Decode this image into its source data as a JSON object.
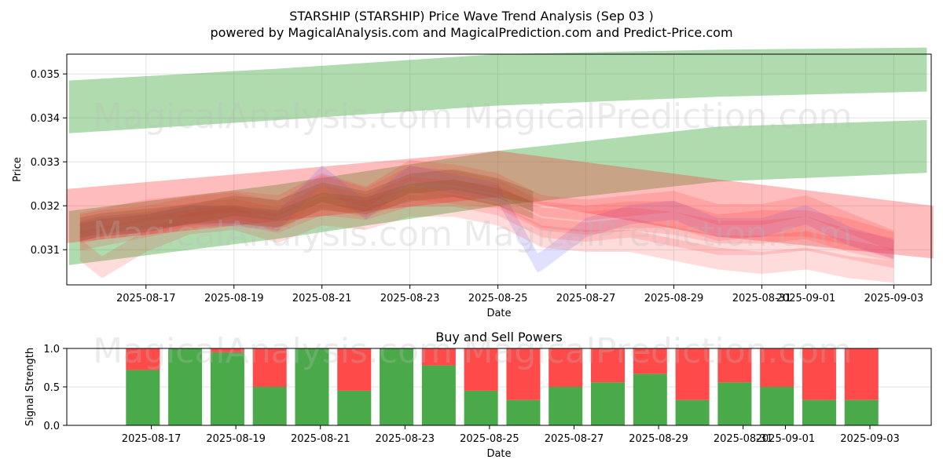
{
  "header": {
    "title_line1": "STARSHIP (STARSHIP) Price Wave Trend Analysis (Sep 03 )",
    "title_line2": "powered by MagicalAnalysis.com and MagicalPrediction.com and Predict-Price.com"
  },
  "watermarks": {
    "left": "MagicalAnalysis.com",
    "right": "MagicalPrediction.com"
  },
  "colors": {
    "green_band": "#2ca02c",
    "red_band": "#ff3030",
    "blue_band": "#6a6aff",
    "buy": "#4aaa4a",
    "sell": "#ff4a4a",
    "grid": "#e3e3e3"
  },
  "chart_data": [
    {
      "type": "area",
      "name": "price-wave-chart",
      "title": "",
      "xlabel": "Date",
      "ylabel": "Price",
      "x_ticks": [
        "2025-08-17",
        "2025-08-19",
        "2025-08-21",
        "2025-08-23",
        "2025-08-25",
        "2025-08-27",
        "2025-08-29",
        "2025-08-31",
        "2025-09-01",
        "2025-09-03"
      ],
      "x_tick_days": [
        2,
        4,
        6,
        8,
        10,
        12,
        14,
        16,
        17,
        19
      ],
      "x_tick_days_note": "days since 2025-08-15",
      "xlim_days": [
        0.2,
        19.85
      ],
      "y_ticks": [
        0.031,
        0.032,
        0.033,
        0.034,
        0.035
      ],
      "ylim": [
        0.0302,
        0.03545
      ],
      "trend_bands": [
        {
          "name": "upper-green-trend",
          "x": [
            0.25,
            5.0,
            10.0,
            15.0,
            19.75
          ],
          "lower": [
            0.03365,
            0.03395,
            0.03428,
            0.03448,
            0.0346
          ],
          "upper": [
            0.03485,
            0.03512,
            0.03545,
            0.03555,
            0.0356
          ]
        },
        {
          "name": "lower-green-trend",
          "x": [
            0.25,
            5.0,
            10.0,
            15.0,
            19.75
          ],
          "lower": [
            0.03065,
            0.03125,
            0.032,
            0.03255,
            0.03275
          ],
          "upper": [
            0.03188,
            0.03248,
            0.03325,
            0.0338,
            0.03395
          ]
        },
        {
          "name": "red-trend",
          "x": [
            0.2,
            5.0,
            10.0,
            15.0,
            19.9
          ],
          "lower": [
            0.03115,
            0.03165,
            0.0322,
            0.0313,
            0.0308
          ],
          "upper": [
            0.03238,
            0.0328,
            0.03325,
            0.0326,
            0.032
          ]
        }
      ],
      "wave_series": [
        {
          "name": "blue-wave",
          "color": "blue",
          "x": [
            0.5,
            1,
            2,
            3,
            4,
            5,
            6,
            7,
            8,
            9,
            10,
            10.9,
            11,
            12,
            13,
            14,
            15,
            16,
            17,
            18,
            19
          ],
          "mid": [
            0.0314,
            0.03155,
            0.0316,
            0.0318,
            0.03175,
            0.03165,
            0.0327,
            0.0319,
            0.0327,
            0.0325,
            0.0323,
            0.0307,
            0.03075,
            0.0315,
            0.0318,
            0.0319,
            0.0315,
            0.0315,
            0.0318,
            0.0313,
            0.031
          ],
          "half_width": 0.00022
        },
        {
          "name": "red-wave-1",
          "color": "red",
          "x": [
            0.5,
            1,
            2,
            3,
            4,
            5,
            6,
            7,
            8,
            9,
            10,
            11,
            12,
            13,
            14,
            15,
            16,
            17,
            18,
            19
          ],
          "mid": [
            0.0315,
            0.0316,
            0.0317,
            0.0319,
            0.032,
            0.0318,
            0.0324,
            0.0321,
            0.0326,
            0.0325,
            0.0323,
            0.0318,
            0.0317,
            0.0318,
            0.0318,
            0.0315,
            0.0316,
            0.0316,
            0.0314,
            0.0311
          ],
          "half_width": 0.0003
        },
        {
          "name": "red-wave-2",
          "color": "red",
          "x": [
            0.5,
            1,
            2,
            3,
            4,
            5,
            6,
            7,
            8,
            9,
            10,
            11,
            12,
            13,
            14,
            15,
            16,
            17,
            18,
            19
          ],
          "mid": [
            0.0314,
            0.0315,
            0.0316,
            0.0318,
            0.0319,
            0.0317,
            0.0322,
            0.032,
            0.0324,
            0.0323,
            0.0322,
            0.0317,
            0.0316,
            0.0317,
            0.0316,
            0.0314,
            0.0314,
            0.0315,
            0.0312,
            0.031
          ],
          "half_width": 0.00026
        },
        {
          "name": "red-wave-3",
          "color": "red",
          "x": [
            0.5,
            1,
            2,
            3,
            4,
            5,
            6,
            7,
            8,
            9,
            10,
            11,
            12,
            13,
            14,
            15,
            16,
            17,
            18,
            19
          ],
          "mid": [
            0.0312,
            0.0313,
            0.0315,
            0.0317,
            0.0318,
            0.0316,
            0.032,
            0.0319,
            0.0322,
            0.0322,
            0.032,
            0.0315,
            0.0314,
            0.0315,
            0.0313,
            0.0311,
            0.0311,
            0.0312,
            0.031,
            0.0308
          ],
          "half_width": 0.00022
        },
        {
          "name": "red-wave-4",
          "color": "red",
          "x": [
            0.5,
            1,
            2,
            3,
            4,
            5,
            6,
            7,
            8,
            9,
            10,
            11,
            12,
            13,
            14,
            15,
            16,
            17,
            18,
            19
          ],
          "mid": [
            0.031,
            0.0306,
            0.0312,
            0.0316,
            0.0317,
            0.0314,
            0.0318,
            0.0317,
            0.032,
            0.032,
            0.0318,
            0.0313,
            0.0312,
            0.0312,
            0.031,
            0.0308,
            0.0307,
            0.0308,
            0.0306,
            0.0305
          ],
          "half_width": 0.00025
        },
        {
          "name": "red-wave-5",
          "color": "red",
          "x": [
            0.5,
            1,
            2,
            3,
            4,
            5,
            6,
            7,
            8,
            9,
            10,
            11,
            12,
            13,
            14,
            15,
            16,
            17,
            18,
            19
          ],
          "mid": [
            0.0316,
            0.0317,
            0.0319,
            0.032,
            0.0321,
            0.032,
            0.0325,
            0.0322,
            0.0328,
            0.0327,
            0.0325,
            0.032,
            0.0319,
            0.032,
            0.0321,
            0.0318,
            0.0318,
            0.032,
            0.0316,
            0.0312
          ],
          "half_width": 0.00024
        },
        {
          "name": "brown-wave-1",
          "color": "brown",
          "x": [
            0.5,
            1,
            2,
            3,
            4,
            5,
            6,
            7,
            8,
            9,
            10,
            10.8
          ],
          "mid": [
            0.0315,
            0.0316,
            0.0317,
            0.0318,
            0.032,
            0.0319,
            0.0323,
            0.0321,
            0.0325,
            0.0326,
            0.0324,
            0.0321
          ],
          "half_width": 0.00023
        },
        {
          "name": "brown-wave-2",
          "color": "brown",
          "x": [
            0.5,
            1,
            2,
            3,
            4,
            5,
            6,
            7,
            8,
            9,
            10,
            10.8
          ],
          "mid": [
            0.0314,
            0.0315,
            0.0316,
            0.0318,
            0.0318,
            0.0317,
            0.0321,
            0.032,
            0.0323,
            0.0324,
            0.0322,
            0.0319
          ],
          "half_width": 0.0002
        }
      ]
    },
    {
      "type": "bar",
      "name": "buy-sell-powers",
      "title": "Buy and Sell Powers",
      "xlabel": "Date",
      "ylabel": "Signal Strength",
      "x_ticks": [
        "2025-08-17",
        "2025-08-19",
        "2025-08-21",
        "2025-08-23",
        "2025-08-25",
        "2025-08-27",
        "2025-08-29",
        "2025-08-31",
        "2025-09-01",
        "2025-09-03"
      ],
      "x_tick_days": [
        2,
        4,
        6,
        8,
        10,
        12,
        14,
        16,
        17,
        19
      ],
      "xlim_days": [
        0.0,
        20.45
      ],
      "y_ticks": [
        0.0,
        0.5,
        1.0
      ],
      "ylim": [
        0,
        1
      ],
      "bar_days": [
        1.8,
        2.8,
        3.8,
        4.8,
        5.8,
        6.8,
        7.8,
        8.8,
        9.8,
        10.8,
        11.8,
        12.8,
        13.8,
        14.8,
        15.8,
        16.8,
        17.8,
        18.8
      ],
      "bar_width_days": 0.8,
      "series": [
        {
          "name": "Buy",
          "values": [
            0.72,
            1.0,
            0.95,
            0.5,
            1.0,
            0.45,
            1.0,
            0.78,
            0.45,
            0.33,
            0.5,
            0.56,
            0.67,
            0.33,
            0.56,
            0.5,
            0.33,
            0.33
          ]
        },
        {
          "name": "Sell",
          "values": [
            0.28,
            0.0,
            0.05,
            0.5,
            0.0,
            0.55,
            0.0,
            0.22,
            0.55,
            0.67,
            0.5,
            0.44,
            0.33,
            0.67,
            0.44,
            0.5,
            0.67,
            0.67
          ]
        }
      ]
    }
  ]
}
